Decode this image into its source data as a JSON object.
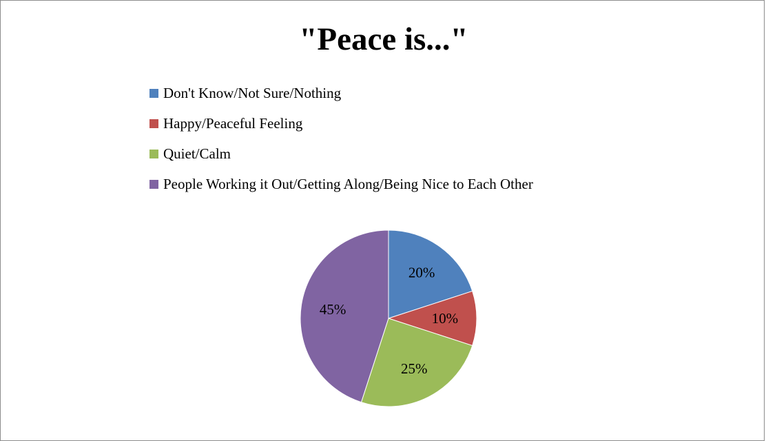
{
  "chart_data": {
    "type": "pie",
    "title": "\"Peace is...\"",
    "legend_position": "top",
    "categories": [
      "Don't Know/Not Sure/Nothing",
      "Happy/Peaceful Feeling",
      "Quiet/Calm",
      "People Working it Out/Getting Along/Being Nice to Each Other"
    ],
    "values": [
      20,
      10,
      25,
      45
    ],
    "data_labels": [
      "20%",
      "10%",
      "25%",
      "45%"
    ],
    "colors": [
      "#4f81bd",
      "#c0504d",
      "#9bbb59",
      "#8064a2"
    ]
  }
}
